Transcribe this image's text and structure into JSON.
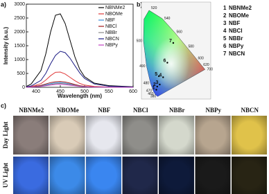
{
  "chart_data": {
    "type": "line",
    "panel_label": "a)",
    "x_label": "Wavelength (nm)",
    "y_label": "Intensity (a.u.)",
    "x": [
      380,
      390,
      410,
      420,
      430,
      440,
      450,
      460,
      470,
      480,
      490,
      500,
      520,
      550,
      600
    ],
    "series": [
      {
        "name": "NBNMe2",
        "color": "#000000",
        "values": [
          30,
          120,
          600,
          1200,
          2000,
          2600,
          2650,
          2300,
          1700,
          1100,
          650,
          380,
          150,
          60,
          20
        ]
      },
      {
        "name": "NBOMe",
        "color": "#e03a3a",
        "values": [
          10,
          30,
          130,
          260,
          420,
          540,
          550,
          480,
          360,
          240,
          140,
          80,
          30,
          10,
          5
        ]
      },
      {
        "name": "NBF",
        "color": "#3a8ad8",
        "values": [
          5,
          15,
          50,
          90,
          130,
          160,
          170,
          150,
          120,
          80,
          50,
          30,
          12,
          5,
          2
        ]
      },
      {
        "name": "NBCl",
        "color": "#a01818",
        "values": [
          5,
          20,
          70,
          120,
          170,
          200,
          210,
          190,
          150,
          100,
          60,
          35,
          15,
          6,
          2
        ]
      },
      {
        "name": "NBBr",
        "color": "#8a8a8a",
        "values": [
          4,
          12,
          40,
          70,
          100,
          130,
          140,
          125,
          100,
          70,
          45,
          25,
          10,
          4,
          2
        ]
      },
      {
        "name": "NBCN",
        "color": "#1c1c84",
        "values": [
          15,
          50,
          250,
          500,
          850,
          1150,
          1300,
          1250,
          1050,
          780,
          520,
          320,
          120,
          40,
          10
        ]
      },
      {
        "name": "NBPy",
        "color": "#c040c0",
        "values": [
          3,
          10,
          30,
          55,
          80,
          100,
          105,
          95,
          75,
          55,
          35,
          20,
          8,
          3,
          1
        ]
      }
    ],
    "xlim": [
      380,
      600
    ],
    "xticks": [
      400,
      450,
      500,
      550,
      600
    ],
    "ylim": [
      0,
      3000
    ],
    "yticks": [
      0,
      500,
      1000,
      1500,
      2000,
      2500,
      3000
    ],
    "legend": "upper right",
    "grid": false
  },
  "cie": {
    "panel_label": "b)",
    "wavelength_labels": [
      "520",
      "540",
      "560",
      "580",
      "600",
      "620",
      "700",
      "500",
      "490",
      "480",
      "470",
      "460",
      "380"
    ],
    "points": [
      {
        "label": "1",
        "x": 0.16,
        "y": 0.07
      },
      {
        "label": "2",
        "x": 0.17,
        "y": 0.1
      },
      {
        "label": "3",
        "x": 0.2,
        "y": 0.12
      },
      {
        "label": "4",
        "x": 0.24,
        "y": 0.19
      },
      {
        "label": "5",
        "x": 0.19,
        "y": 0.2
      },
      {
        "label": "6",
        "x": 0.29,
        "y": 0.33
      },
      {
        "label": "7",
        "x": 0.36,
        "y": 0.52
      }
    ],
    "legend": [
      {
        "number": "1",
        "name": "NBNMe2"
      },
      {
        "number": "2",
        "name": "NBOMe"
      },
      {
        "number": "3",
        "name": "NBF"
      },
      {
        "number": "4",
        "name": "NBCl"
      },
      {
        "number": "5",
        "name": "NBBr"
      },
      {
        "number": "6",
        "name": "NBPy"
      },
      {
        "number": "7",
        "name": "NBCN"
      }
    ]
  },
  "photos": {
    "panel_label": "c)",
    "columns": [
      "NBNMe2",
      "NBOMe",
      "NBF",
      "NBCl",
      "NBBr",
      "NBPy",
      "NBCN"
    ],
    "rows": [
      {
        "name": "Day Light",
        "colors": [
          "#8a7d7a",
          "#d9cbb7",
          "#e6e7ee",
          "#8f8e8a",
          "#d4d8cc",
          "#b7a58f",
          "#e0c24a"
        ]
      },
      {
        "name": "UV Light",
        "colors": [
          "#3a6be0",
          "#3c8ae8",
          "#3a86f0",
          "#20284a",
          "#0e1a3a",
          "#1a1a1a",
          "#282414"
        ]
      }
    ]
  }
}
